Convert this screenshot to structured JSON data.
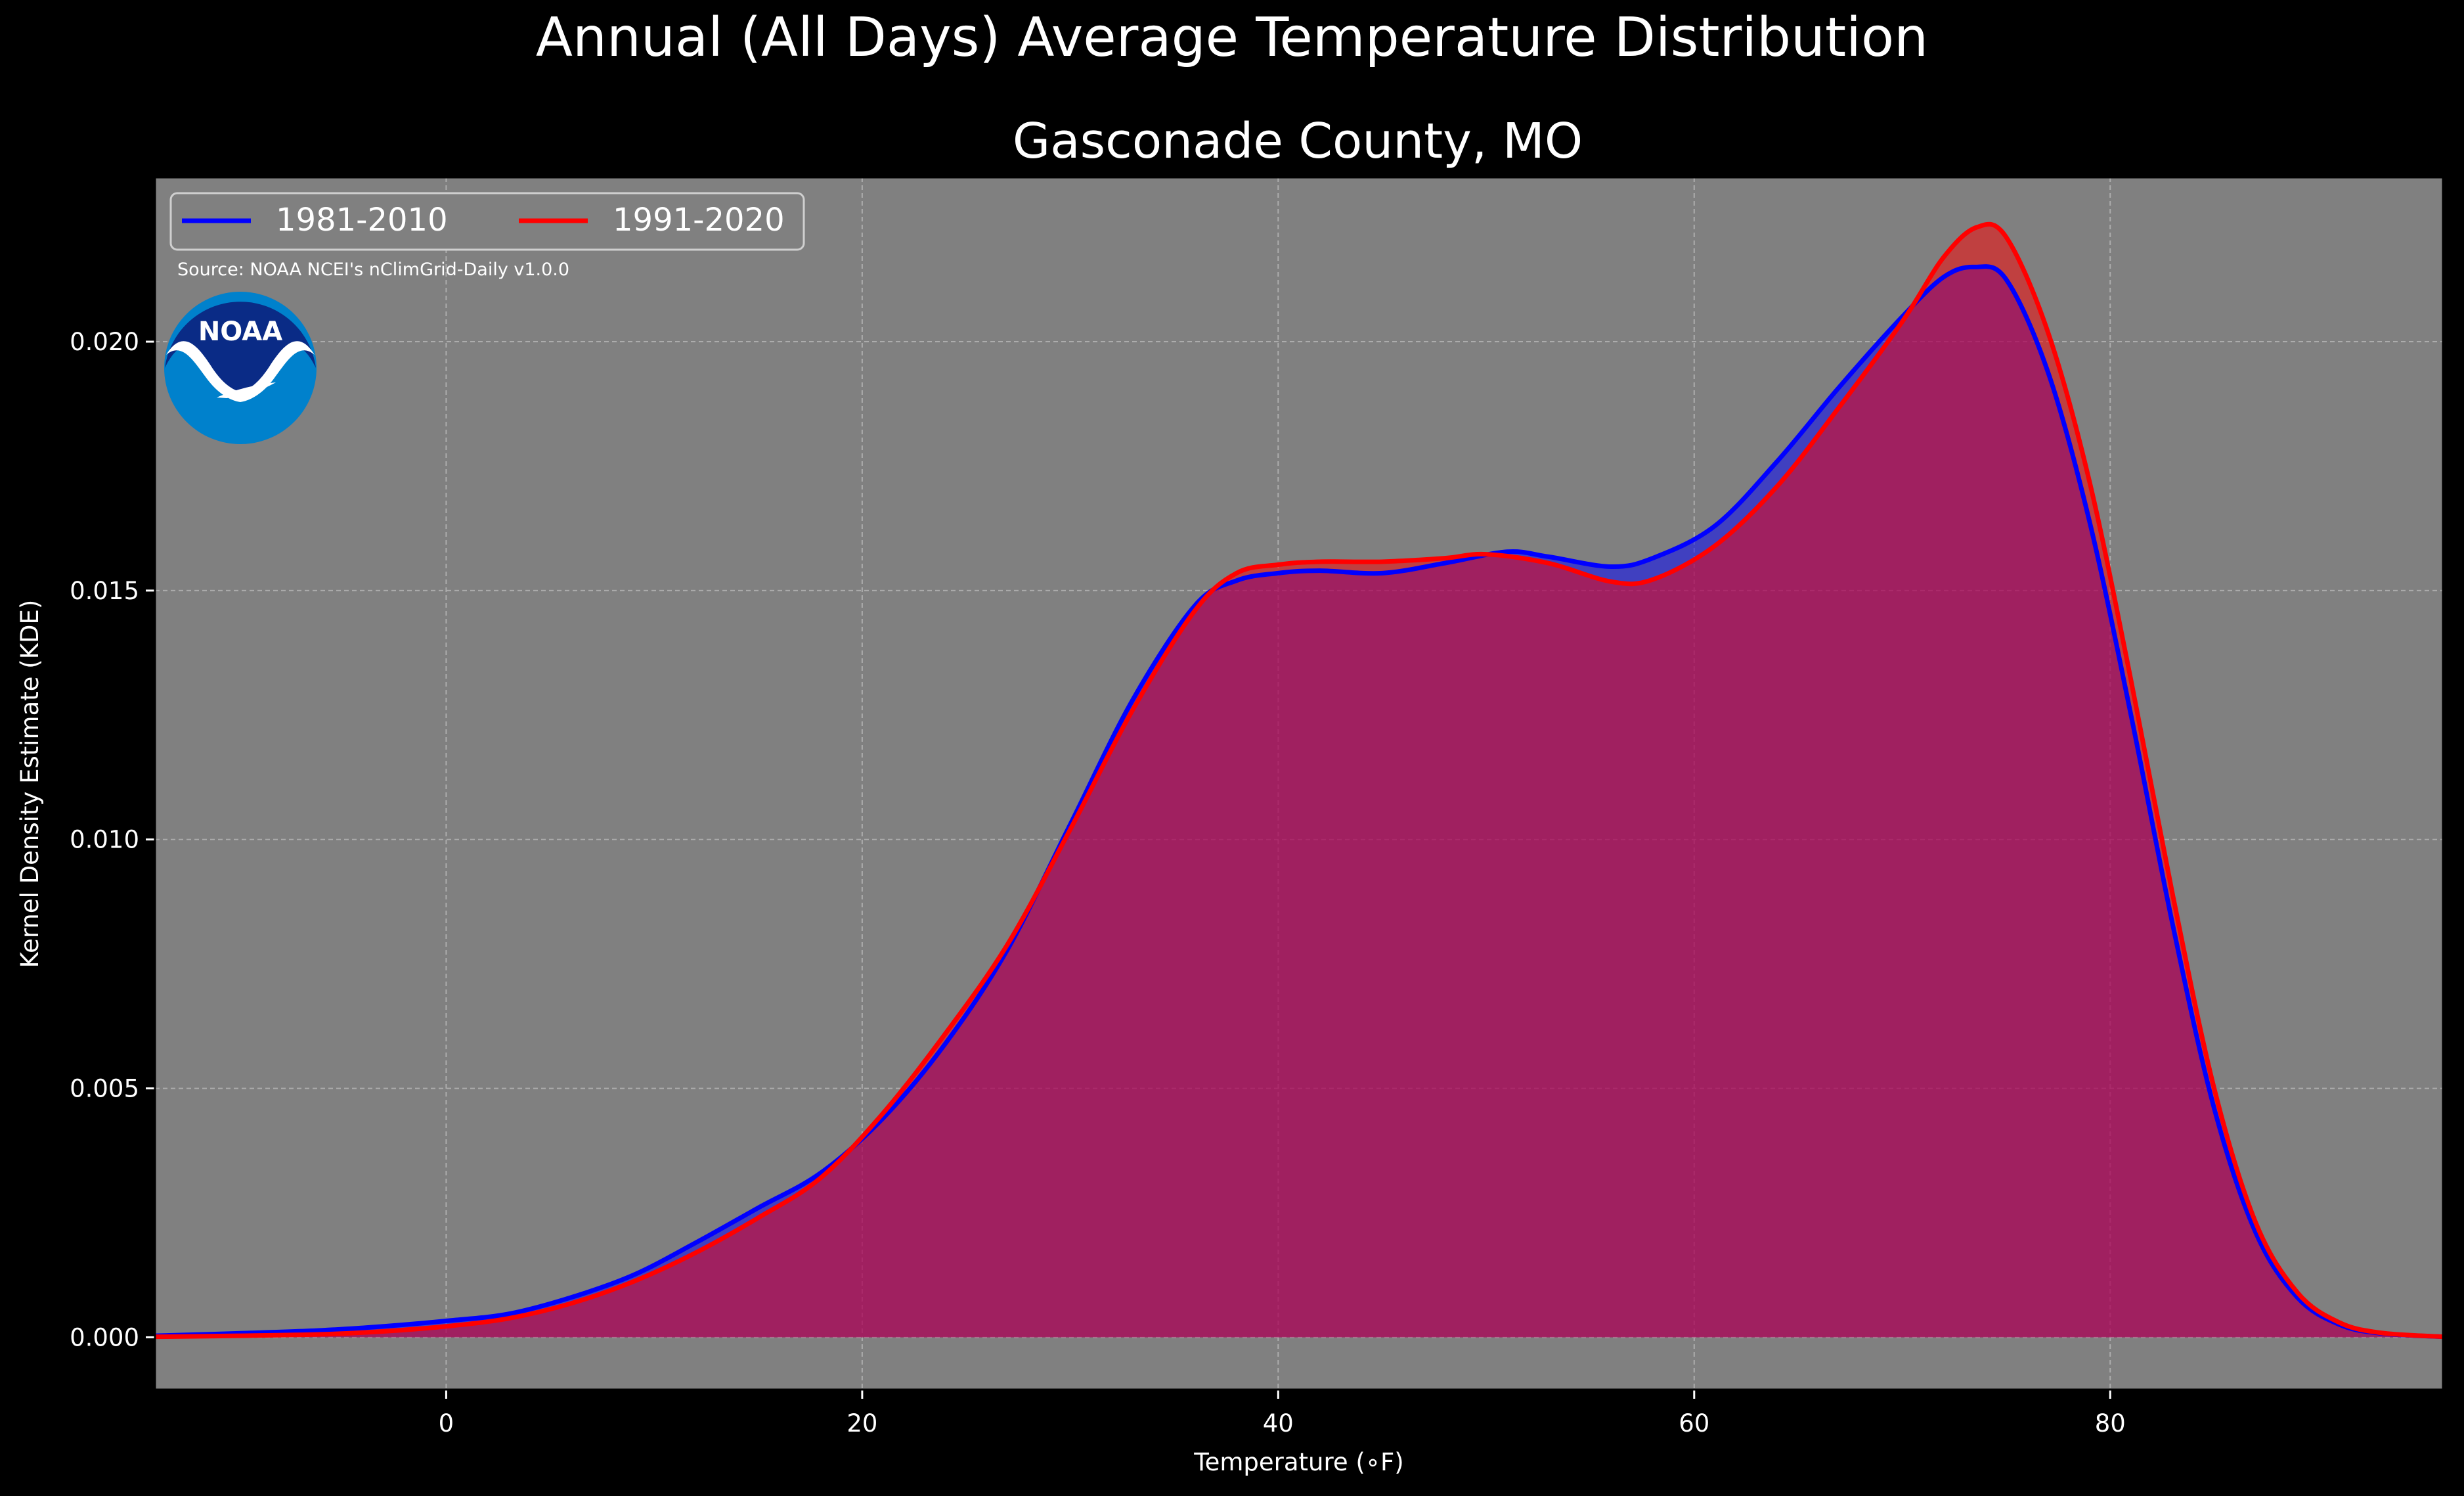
{
  "chart_data": {
    "type": "area",
    "title": "Annual (All Days) Average Temperature Distribution",
    "subtitle": "Gasconade County, MO",
    "xlabel": "Temperature (∘F)",
    "ylabel": "Kernel Density Estimate (KDE)",
    "source": "Source: NOAA NCEI's nClimGrid-Daily v1.0.0",
    "logo_text": "NOAA",
    "xlim": [
      -14,
      96
    ],
    "ylim": [
      -0.00105,
      0.0233
    ],
    "x_ticks": [
      0,
      20,
      40,
      60,
      80
    ],
    "y_ticks": [
      0.0,
      0.005,
      0.01,
      0.015,
      0.02
    ],
    "x_tick_labels": [
      "0",
      "20",
      "40",
      "60",
      "80"
    ],
    "y_tick_labels": [
      "0.000",
      "0.005",
      "0.010",
      "0.015",
      "0.020"
    ],
    "grid": true,
    "legend_position": "top-left",
    "background_color": "#808080",
    "series": [
      {
        "name": "1981-2010",
        "color": "#0000ff",
        "fill_color": "#0000ff",
        "points": [
          [
            -14,
            3e-05
          ],
          [
            -10,
            8e-05
          ],
          [
            -6,
            0.00014
          ],
          [
            -3,
            0.00022
          ],
          [
            0,
            0.00033
          ],
          [
            3,
            0.00047
          ],
          [
            6,
            0.0008
          ],
          [
            9,
            0.00125
          ],
          [
            12,
            0.0019
          ],
          [
            15,
            0.0026
          ],
          [
            18,
            0.0033
          ],
          [
            21,
            0.0044
          ],
          [
            24,
            0.0059
          ],
          [
            27,
            0.0078
          ],
          [
            30,
            0.0103
          ],
          [
            33,
            0.0128
          ],
          [
            36,
            0.0147
          ],
          [
            38,
            0.0152
          ],
          [
            40,
            0.01535
          ],
          [
            42,
            0.0154
          ],
          [
            45,
            0.01535
          ],
          [
            48,
            0.01555
          ],
          [
            51,
            0.01578
          ],
          [
            53,
            0.01568
          ],
          [
            56,
            0.01548
          ],
          [
            58,
            0.01565
          ],
          [
            61,
            0.0163
          ],
          [
            64,
            0.0176
          ],
          [
            67,
            0.0191
          ],
          [
            70,
            0.0205
          ],
          [
            72,
            0.0213
          ],
          [
            73.5,
            0.0215
          ],
          [
            75,
            0.02125
          ],
          [
            77,
            0.0194
          ],
          [
            79,
            0.0164
          ],
          [
            81,
            0.0125
          ],
          [
            83,
            0.0083
          ],
          [
            85,
            0.0046
          ],
          [
            87,
            0.0021
          ],
          [
            89,
            0.0008
          ],
          [
            91,
            0.00026
          ],
          [
            93,
            8e-05
          ],
          [
            96,
            1e-05
          ]
        ]
      },
      {
        "name": "1991-2020",
        "color": "#ff0000",
        "fill_color": "#ff0000",
        "points": [
          [
            -14,
            1e-05
          ],
          [
            -10,
            3e-05
          ],
          [
            -6,
            6e-05
          ],
          [
            -3,
            0.00012
          ],
          [
            0,
            0.00022
          ],
          [
            3,
            0.00038
          ],
          [
            6,
            0.00068
          ],
          [
            9,
            0.00112
          ],
          [
            12,
            0.0017
          ],
          [
            15,
            0.0024
          ],
          [
            18,
            0.0032
          ],
          [
            21,
            0.0045
          ],
          [
            24,
            0.0061
          ],
          [
            27,
            0.0079
          ],
          [
            30,
            0.0102
          ],
          [
            33,
            0.0126
          ],
          [
            36,
            0.0146
          ],
          [
            38,
            0.01535
          ],
          [
            40,
            0.01552
          ],
          [
            42,
            0.01558
          ],
          [
            45,
            0.01558
          ],
          [
            48,
            0.01565
          ],
          [
            50,
            0.01573
          ],
          [
            53,
            0.01555
          ],
          [
            56,
            0.01518
          ],
          [
            58,
            0.01522
          ],
          [
            61,
            0.0159
          ],
          [
            64,
            0.0171
          ],
          [
            67,
            0.0187
          ],
          [
            70,
            0.0204
          ],
          [
            72,
            0.0217
          ],
          [
            73.6,
            0.0223
          ],
          [
            75,
            0.0221
          ],
          [
            77,
            0.0202
          ],
          [
            79,
            0.0172
          ],
          [
            81,
            0.0132
          ],
          [
            83,
            0.0089
          ],
          [
            85,
            0.005
          ],
          [
            87,
            0.0023
          ],
          [
            89,
            0.0009
          ],
          [
            91,
            0.0003
          ],
          [
            93,
            9e-05
          ],
          [
            96,
            1e-05
          ]
        ]
      }
    ]
  }
}
